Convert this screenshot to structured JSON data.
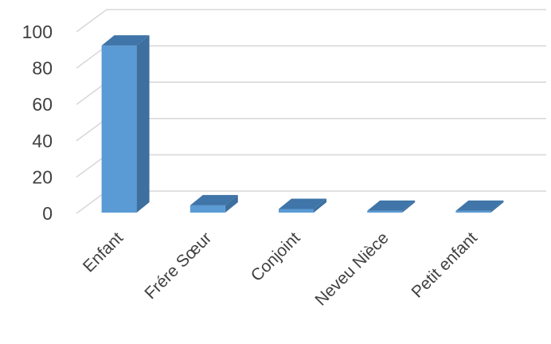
{
  "chart_data": {
    "type": "bar",
    "style": "3d-column",
    "categories": [
      "Enfant",
      "Frére Sœur",
      "Conjoint",
      "Neveu Nièce",
      "Petit enfant"
    ],
    "series": [
      {
        "values": [
          92,
          4,
          2,
          1,
          1
        ]
      }
    ],
    "ylim": [
      0,
      100
    ],
    "yticks": [
      0,
      20,
      40,
      60,
      80,
      100
    ],
    "grid": true,
    "legend": "none",
    "colors": {
      "front": "#5b9bd5",
      "side": "#3d6f9f",
      "top": "#3f75a8",
      "grid": "#d9d9d9",
      "text": "#404040"
    }
  }
}
